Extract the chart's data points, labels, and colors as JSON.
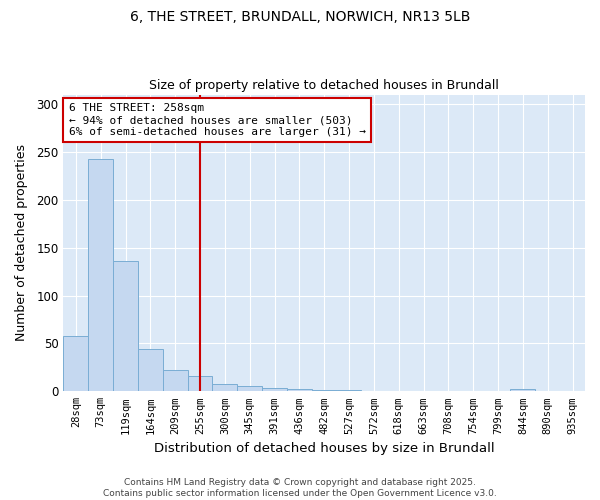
{
  "title_line1": "6, THE STREET, BRUNDALL, NORWICH, NR13 5LB",
  "title_line2": "Size of property relative to detached houses in Brundall",
  "xlabel": "Distribution of detached houses by size in Brundall",
  "ylabel": "Number of detached properties",
  "categories": [
    "28sqm",
    "73sqm",
    "119sqm",
    "164sqm",
    "209sqm",
    "255sqm",
    "300sqm",
    "345sqm",
    "391sqm",
    "436sqm",
    "482sqm",
    "527sqm",
    "572sqm",
    "618sqm",
    "663sqm",
    "708sqm",
    "754sqm",
    "799sqm",
    "844sqm",
    "890sqm",
    "935sqm"
  ],
  "values": [
    58,
    243,
    136,
    44,
    22,
    16,
    8,
    6,
    3,
    2,
    1,
    1,
    0,
    0,
    0,
    0,
    0,
    0,
    2,
    0,
    0
  ],
  "bar_color": "#c5d8f0",
  "bar_edge_color": "#7aadd4",
  "red_line_index": 5,
  "annotation_text": "6 THE STREET: 258sqm\n← 94% of detached houses are smaller (503)\n6% of semi-detached houses are larger (31) →",
  "annotation_box_color": "#ffffff",
  "annotation_box_edge": "#cc0000",
  "red_line_color": "#cc0000",
  "background_color": "#dce9f7",
  "ylim": [
    0,
    310
  ],
  "yticks": [
    0,
    50,
    100,
    150,
    200,
    250,
    300
  ],
  "footer_line1": "Contains HM Land Registry data © Crown copyright and database right 2025.",
  "footer_line2": "Contains public sector information licensed under the Open Government Licence v3.0."
}
